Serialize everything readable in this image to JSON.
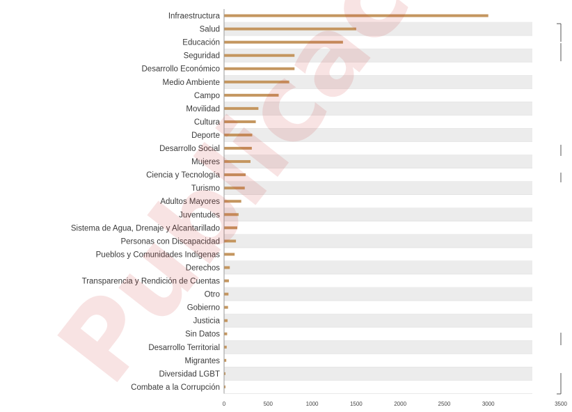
{
  "chart_data": {
    "type": "bar",
    "orientation": "horizontal",
    "categories": [
      "Infraestructura",
      "Salud",
      "Educación",
      "Seguridad",
      "Desarrollo Económico",
      "Medio Ambiente",
      "Campo",
      "Movilidad",
      "Cultura",
      "Deporte",
      "Desarrollo Social",
      "Mujeres",
      "Ciencia y Tecnología",
      "Turismo",
      "Adultos Mayores",
      "Juventudes",
      "Sistema de Agua, Drenaje y Alcantarillado",
      "Personas con Discapacidad",
      "Pueblos y Comunidades Indígenas",
      "Derechos",
      "Transparencia y Rendición de Cuentas",
      "Otro",
      "Gobierno",
      "Justicia",
      "Sin Datos",
      "Desarrollo Territorial",
      "Migrantes",
      "Diversidad LGBT",
      "Combate a la Corrupción"
    ],
    "values": [
      3000,
      1500,
      1350,
      800,
      800,
      740,
      620,
      390,
      360,
      320,
      315,
      300,
      245,
      235,
      195,
      165,
      150,
      135,
      120,
      65,
      55,
      50,
      45,
      40,
      35,
      30,
      25,
      15,
      5
    ],
    "xlim": [
      0,
      3500
    ],
    "xticks": [
      "0",
      "500",
      "1000",
      "1500",
      "2000",
      "2500",
      "3000",
      "3500"
    ],
    "title": "",
    "xlabel": "",
    "ylabel": "",
    "grid": "alternating row bands",
    "legend": "none",
    "bar_color": "#c4965f",
    "band_color": "#ececec"
  },
  "watermark": {
    "text": "Publicación"
  }
}
